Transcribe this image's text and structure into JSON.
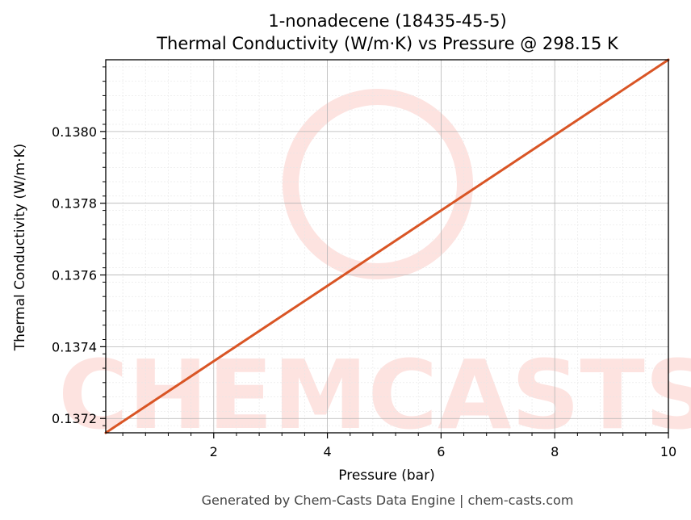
{
  "chart_data": {
    "type": "line",
    "title": "1-nonadecene (18435-45-5)",
    "subtitle": "Thermal Conductivity (W/m·K) vs Pressure @ 298.15 K",
    "xlabel": "Pressure (bar)",
    "ylabel": "Thermal Conductivity (W/m·K)",
    "xlim": [
      0.1,
      10
    ],
    "ylim": [
      0.13716,
      0.1382
    ],
    "xticks": [
      2,
      4,
      6,
      8,
      10
    ],
    "yticks": [
      0.1372,
      0.1374,
      0.1376,
      0.1378,
      0.138
    ],
    "ytick_labels": [
      "0.1372",
      "0.1374",
      "0.1376",
      "0.1378",
      "0.1380"
    ],
    "grid": true,
    "series": [
      {
        "color": "#d95525",
        "x": [
          0.1,
          10
        ],
        "y": [
          0.13716,
          0.1382
        ]
      }
    ]
  },
  "watermark": {
    "text": "CHEMCASTS",
    "color": "#fde3e0"
  },
  "footer": "Generated by Chem-Casts Data Engine | chem-casts.com"
}
